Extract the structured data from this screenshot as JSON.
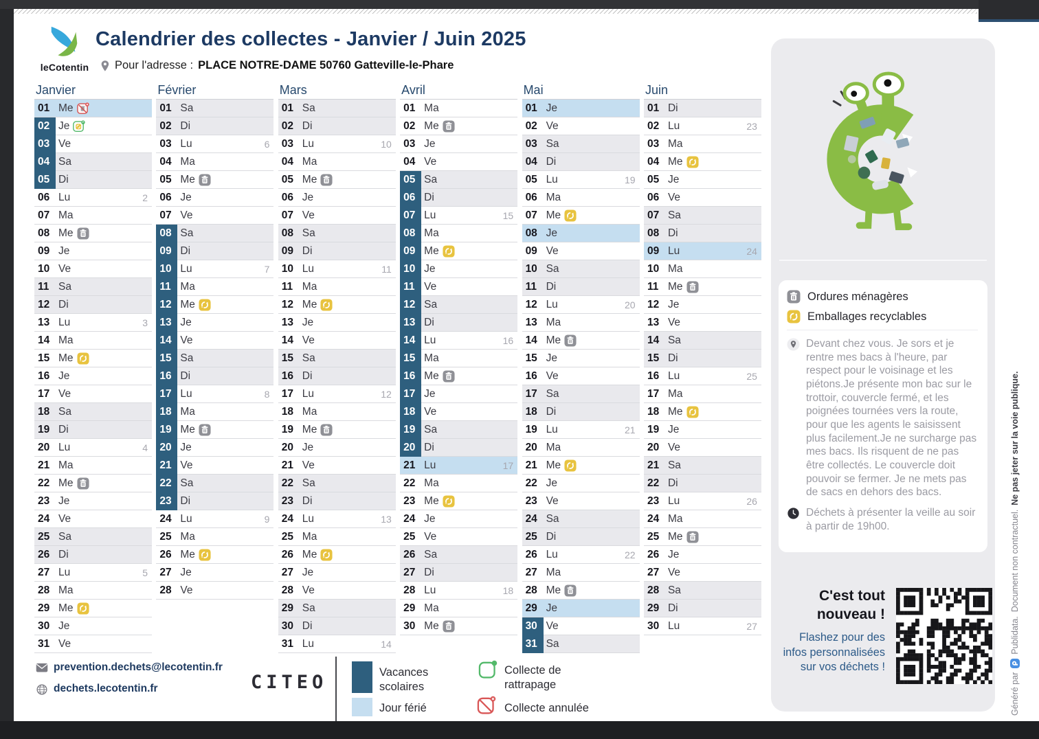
{
  "header": {
    "logo_text": "leCotentin",
    "title": "Calendrier des collectes - Janvier / Juin 2025",
    "address_prefix": "Pour l'adresse :",
    "address": "PLACE NOTRE-DAME 50760 Gatteville-le-Phare"
  },
  "calendar": {
    "months": [
      {
        "name": "Janvier",
        "days": [
          {
            "d": "01",
            "w": "Me",
            "h": "f",
            "i": "x"
          },
          {
            "d": "02",
            "w": "Je",
            "h": "v",
            "i": "r"
          },
          {
            "d": "03",
            "w": "Ve",
            "h": "v"
          },
          {
            "d": "04",
            "w": "Sa",
            "h": "v"
          },
          {
            "d": "05",
            "w": "Di",
            "h": "v"
          },
          {
            "d": "06",
            "w": "Lu",
            "k": "2"
          },
          {
            "d": "07",
            "w": "Ma"
          },
          {
            "d": "08",
            "w": "Me",
            "i": "om"
          },
          {
            "d": "09",
            "w": "Je"
          },
          {
            "d": "10",
            "w": "Ve"
          },
          {
            "d": "11",
            "w": "Sa"
          },
          {
            "d": "12",
            "w": "Di"
          },
          {
            "d": "13",
            "w": "Lu",
            "k": "3"
          },
          {
            "d": "14",
            "w": "Ma"
          },
          {
            "d": "15",
            "w": "Me",
            "i": "er"
          },
          {
            "d": "16",
            "w": "Je"
          },
          {
            "d": "17",
            "w": "Ve"
          },
          {
            "d": "18",
            "w": "Sa"
          },
          {
            "d": "19",
            "w": "Di"
          },
          {
            "d": "20",
            "w": "Lu",
            "k": "4"
          },
          {
            "d": "21",
            "w": "Ma"
          },
          {
            "d": "22",
            "w": "Me",
            "i": "om"
          },
          {
            "d": "23",
            "w": "Je"
          },
          {
            "d": "24",
            "w": "Ve"
          },
          {
            "d": "25",
            "w": "Sa"
          },
          {
            "d": "26",
            "w": "Di"
          },
          {
            "d": "27",
            "w": "Lu",
            "k": "5"
          },
          {
            "d": "28",
            "w": "Ma"
          },
          {
            "d": "29",
            "w": "Me",
            "i": "er"
          },
          {
            "d": "30",
            "w": "Je"
          },
          {
            "d": "31",
            "w": "Ve"
          }
        ]
      },
      {
        "name": "Février",
        "days": [
          {
            "d": "01",
            "w": "Sa"
          },
          {
            "d": "02",
            "w": "Di"
          },
          {
            "d": "03",
            "w": "Lu",
            "k": "6"
          },
          {
            "d": "04",
            "w": "Ma"
          },
          {
            "d": "05",
            "w": "Me",
            "i": "om"
          },
          {
            "d": "06",
            "w": "Je"
          },
          {
            "d": "07",
            "w": "Ve"
          },
          {
            "d": "08",
            "w": "Sa",
            "h": "v"
          },
          {
            "d": "09",
            "w": "Di",
            "h": "v"
          },
          {
            "d": "10",
            "w": "Lu",
            "h": "v",
            "k": "7"
          },
          {
            "d": "11",
            "w": "Ma",
            "h": "v"
          },
          {
            "d": "12",
            "w": "Me",
            "h": "v",
            "i": "er"
          },
          {
            "d": "13",
            "w": "Je",
            "h": "v"
          },
          {
            "d": "14",
            "w": "Ve",
            "h": "v"
          },
          {
            "d": "15",
            "w": "Sa",
            "h": "v"
          },
          {
            "d": "16",
            "w": "Di",
            "h": "v"
          },
          {
            "d": "17",
            "w": "Lu",
            "h": "v",
            "k": "8"
          },
          {
            "d": "18",
            "w": "Ma",
            "h": "v"
          },
          {
            "d": "19",
            "w": "Me",
            "h": "v",
            "i": "om"
          },
          {
            "d": "20",
            "w": "Je",
            "h": "v"
          },
          {
            "d": "21",
            "w": "Ve",
            "h": "v"
          },
          {
            "d": "22",
            "w": "Sa",
            "h": "v"
          },
          {
            "d": "23",
            "w": "Di",
            "h": "v"
          },
          {
            "d": "24",
            "w": "Lu",
            "k": "9"
          },
          {
            "d": "25",
            "w": "Ma"
          },
          {
            "d": "26",
            "w": "Me",
            "i": "er"
          },
          {
            "d": "27",
            "w": "Je"
          },
          {
            "d": "28",
            "w": "Ve"
          }
        ]
      },
      {
        "name": "Mars",
        "days": [
          {
            "d": "01",
            "w": "Sa"
          },
          {
            "d": "02",
            "w": "Di"
          },
          {
            "d": "03",
            "w": "Lu",
            "k": "10"
          },
          {
            "d": "04",
            "w": "Ma"
          },
          {
            "d": "05",
            "w": "Me",
            "i": "om"
          },
          {
            "d": "06",
            "w": "Je"
          },
          {
            "d": "07",
            "w": "Ve"
          },
          {
            "d": "08",
            "w": "Sa"
          },
          {
            "d": "09",
            "w": "Di"
          },
          {
            "d": "10",
            "w": "Lu",
            "k": "11"
          },
          {
            "d": "11",
            "w": "Ma"
          },
          {
            "d": "12",
            "w": "Me",
            "i": "er"
          },
          {
            "d": "13",
            "w": "Je"
          },
          {
            "d": "14",
            "w": "Ve"
          },
          {
            "d": "15",
            "w": "Sa"
          },
          {
            "d": "16",
            "w": "Di"
          },
          {
            "d": "17",
            "w": "Lu",
            "k": "12"
          },
          {
            "d": "18",
            "w": "Ma"
          },
          {
            "d": "19",
            "w": "Me",
            "i": "om"
          },
          {
            "d": "20",
            "w": "Je"
          },
          {
            "d": "21",
            "w": "Ve"
          },
          {
            "d": "22",
            "w": "Sa"
          },
          {
            "d": "23",
            "w": "Di"
          },
          {
            "d": "24",
            "w": "Lu",
            "k": "13"
          },
          {
            "d": "25",
            "w": "Ma"
          },
          {
            "d": "26",
            "w": "Me",
            "i": "er"
          },
          {
            "d": "27",
            "w": "Je"
          },
          {
            "d": "28",
            "w": "Ve"
          },
          {
            "d": "29",
            "w": "Sa"
          },
          {
            "d": "30",
            "w": "Di"
          },
          {
            "d": "31",
            "w": "Lu",
            "k": "14"
          }
        ]
      },
      {
        "name": "Avril",
        "days": [
          {
            "d": "01",
            "w": "Ma"
          },
          {
            "d": "02",
            "w": "Me",
            "i": "om"
          },
          {
            "d": "03",
            "w": "Je"
          },
          {
            "d": "04",
            "w": "Ve"
          },
          {
            "d": "05",
            "w": "Sa",
            "h": "v"
          },
          {
            "d": "06",
            "w": "Di",
            "h": "v"
          },
          {
            "d": "07",
            "w": "Lu",
            "h": "v",
            "k": "15"
          },
          {
            "d": "08",
            "w": "Ma",
            "h": "v"
          },
          {
            "d": "09",
            "w": "Me",
            "h": "v",
            "i": "er"
          },
          {
            "d": "10",
            "w": "Je",
            "h": "v"
          },
          {
            "d": "11",
            "w": "Ve",
            "h": "v"
          },
          {
            "d": "12",
            "w": "Sa",
            "h": "v"
          },
          {
            "d": "13",
            "w": "Di",
            "h": "v"
          },
          {
            "d": "14",
            "w": "Lu",
            "h": "v",
            "k": "16"
          },
          {
            "d": "15",
            "w": "Ma",
            "h": "v"
          },
          {
            "d": "16",
            "w": "Me",
            "h": "v",
            "i": "om"
          },
          {
            "d": "17",
            "w": "Je",
            "h": "v"
          },
          {
            "d": "18",
            "w": "Ve",
            "h": "v"
          },
          {
            "d": "19",
            "w": "Sa",
            "h": "v"
          },
          {
            "d": "20",
            "w": "Di",
            "h": "v"
          },
          {
            "d": "21",
            "w": "Lu",
            "h": "f",
            "k": "17"
          },
          {
            "d": "22",
            "w": "Ma"
          },
          {
            "d": "23",
            "w": "Me",
            "i": "er"
          },
          {
            "d": "24",
            "w": "Je"
          },
          {
            "d": "25",
            "w": "Ve"
          },
          {
            "d": "26",
            "w": "Sa"
          },
          {
            "d": "27",
            "w": "Di"
          },
          {
            "d": "28",
            "w": "Lu",
            "k": "18"
          },
          {
            "d": "29",
            "w": "Ma"
          },
          {
            "d": "30",
            "w": "Me",
            "i": "om"
          }
        ]
      },
      {
        "name": "Mai",
        "days": [
          {
            "d": "01",
            "w": "Je",
            "h": "f"
          },
          {
            "d": "02",
            "w": "Ve"
          },
          {
            "d": "03",
            "w": "Sa"
          },
          {
            "d": "04",
            "w": "Di"
          },
          {
            "d": "05",
            "w": "Lu",
            "k": "19"
          },
          {
            "d": "06",
            "w": "Ma"
          },
          {
            "d": "07",
            "w": "Me",
            "i": "er"
          },
          {
            "d": "08",
            "w": "Je",
            "h": "f"
          },
          {
            "d": "09",
            "w": "Ve"
          },
          {
            "d": "10",
            "w": "Sa"
          },
          {
            "d": "11",
            "w": "Di"
          },
          {
            "d": "12",
            "w": "Lu",
            "k": "20"
          },
          {
            "d": "13",
            "w": "Ma"
          },
          {
            "d": "14",
            "w": "Me",
            "i": "om"
          },
          {
            "d": "15",
            "w": "Je"
          },
          {
            "d": "16",
            "w": "Ve"
          },
          {
            "d": "17",
            "w": "Sa"
          },
          {
            "d": "18",
            "w": "Di"
          },
          {
            "d": "19",
            "w": "Lu",
            "k": "21"
          },
          {
            "d": "20",
            "w": "Ma"
          },
          {
            "d": "21",
            "w": "Me",
            "i": "er"
          },
          {
            "d": "22",
            "w": "Je"
          },
          {
            "d": "23",
            "w": "Ve"
          },
          {
            "d": "24",
            "w": "Sa"
          },
          {
            "d": "25",
            "w": "Di"
          },
          {
            "d": "26",
            "w": "Lu",
            "k": "22"
          },
          {
            "d": "27",
            "w": "Ma"
          },
          {
            "d": "28",
            "w": "Me",
            "i": "om"
          },
          {
            "d": "29",
            "w": "Je",
            "h": "f"
          },
          {
            "d": "30",
            "w": "Ve",
            "h": "v"
          },
          {
            "d": "31",
            "w": "Sa",
            "h": "v"
          }
        ]
      },
      {
        "name": "Juin",
        "days": [
          {
            "d": "01",
            "w": "Di"
          },
          {
            "d": "02",
            "w": "Lu",
            "k": "23"
          },
          {
            "d": "03",
            "w": "Ma"
          },
          {
            "d": "04",
            "w": "Me",
            "i": "er"
          },
          {
            "d": "05",
            "w": "Je"
          },
          {
            "d": "06",
            "w": "Ve"
          },
          {
            "d": "07",
            "w": "Sa"
          },
          {
            "d": "08",
            "w": "Di"
          },
          {
            "d": "09",
            "w": "Lu",
            "h": "f",
            "k": "24"
          },
          {
            "d": "10",
            "w": "Ma"
          },
          {
            "d": "11",
            "w": "Me",
            "i": "om"
          },
          {
            "d": "12",
            "w": "Je"
          },
          {
            "d": "13",
            "w": "Ve"
          },
          {
            "d": "14",
            "w": "Sa"
          },
          {
            "d": "15",
            "w": "Di"
          },
          {
            "d": "16",
            "w": "Lu",
            "k": "25"
          },
          {
            "d": "17",
            "w": "Ma"
          },
          {
            "d": "18",
            "w": "Me",
            "i": "er"
          },
          {
            "d": "19",
            "w": "Je"
          },
          {
            "d": "20",
            "w": "Ve"
          },
          {
            "d": "21",
            "w": "Sa"
          },
          {
            "d": "22",
            "w": "Di"
          },
          {
            "d": "23",
            "w": "Lu",
            "k": "26"
          },
          {
            "d": "24",
            "w": "Ma"
          },
          {
            "d": "25",
            "w": "Me",
            "i": "om"
          },
          {
            "d": "26",
            "w": "Je"
          },
          {
            "d": "27",
            "w": "Ve"
          },
          {
            "d": "28",
            "w": "Sa"
          },
          {
            "d": "29",
            "w": "Di"
          },
          {
            "d": "30",
            "w": "Lu",
            "k": "27"
          }
        ]
      }
    ]
  },
  "sidebar": {
    "legend": [
      {
        "icon": "om",
        "label": "Ordures ménagères"
      },
      {
        "icon": "er",
        "label": "Emballages recyclables"
      }
    ],
    "notes": [
      {
        "icon": "pin",
        "text": "Devant chez vous. Je sors et je rentre mes bacs à l'heure, par respect pour le voisinage et les piétons.Je présente mon bac sur le trottoir, couvercle fermé, et les poignées tournées vers la route, pour que les agents le saisissent plus facilement.Je ne surcharge pas mes bacs. Ils risquent de ne pas être collectés. Le couvercle doit pouvoir se fermer. Je ne mets pas de sacs en dehors des bacs."
      },
      {
        "icon": "clock",
        "text": "Déchets à présenter la veille au soir à partir de 19h00."
      }
    ],
    "cta_title": "C'est tout nouveau !",
    "cta_text": "Flashez pour des infos personnalisées sur vos déchets !"
  },
  "footer": {
    "email": "prevention.dechets@lecotentin.fr",
    "website": "dechets.lecotentin.fr",
    "citeo": "CITEO",
    "legend": [
      {
        "type": "vac",
        "label": "Vacances scolaires"
      },
      {
        "type": "ferie",
        "label": "Jour férié"
      },
      {
        "type": "catchup",
        "label": "Collecte de rattrapage"
      },
      {
        "type": "cancelled",
        "label": "Collecte annulée"
      }
    ]
  },
  "edge_note": {
    "generated_by": "Généré par",
    "brand": "Publidata.",
    "line": "Document non contractuel.",
    "bold": "Ne pas jeter sur la voie publique."
  },
  "colors": {
    "vacances": "#2e5f7e",
    "ferie": "#c5def0",
    "weekend": "#e9e9ed",
    "accent_navy": "#1d3a63",
    "om_grey": "#8f9096",
    "er_yellow": "#e8c33f",
    "catchup_green": "#53b96a",
    "cancelled_red": "#d95757"
  }
}
